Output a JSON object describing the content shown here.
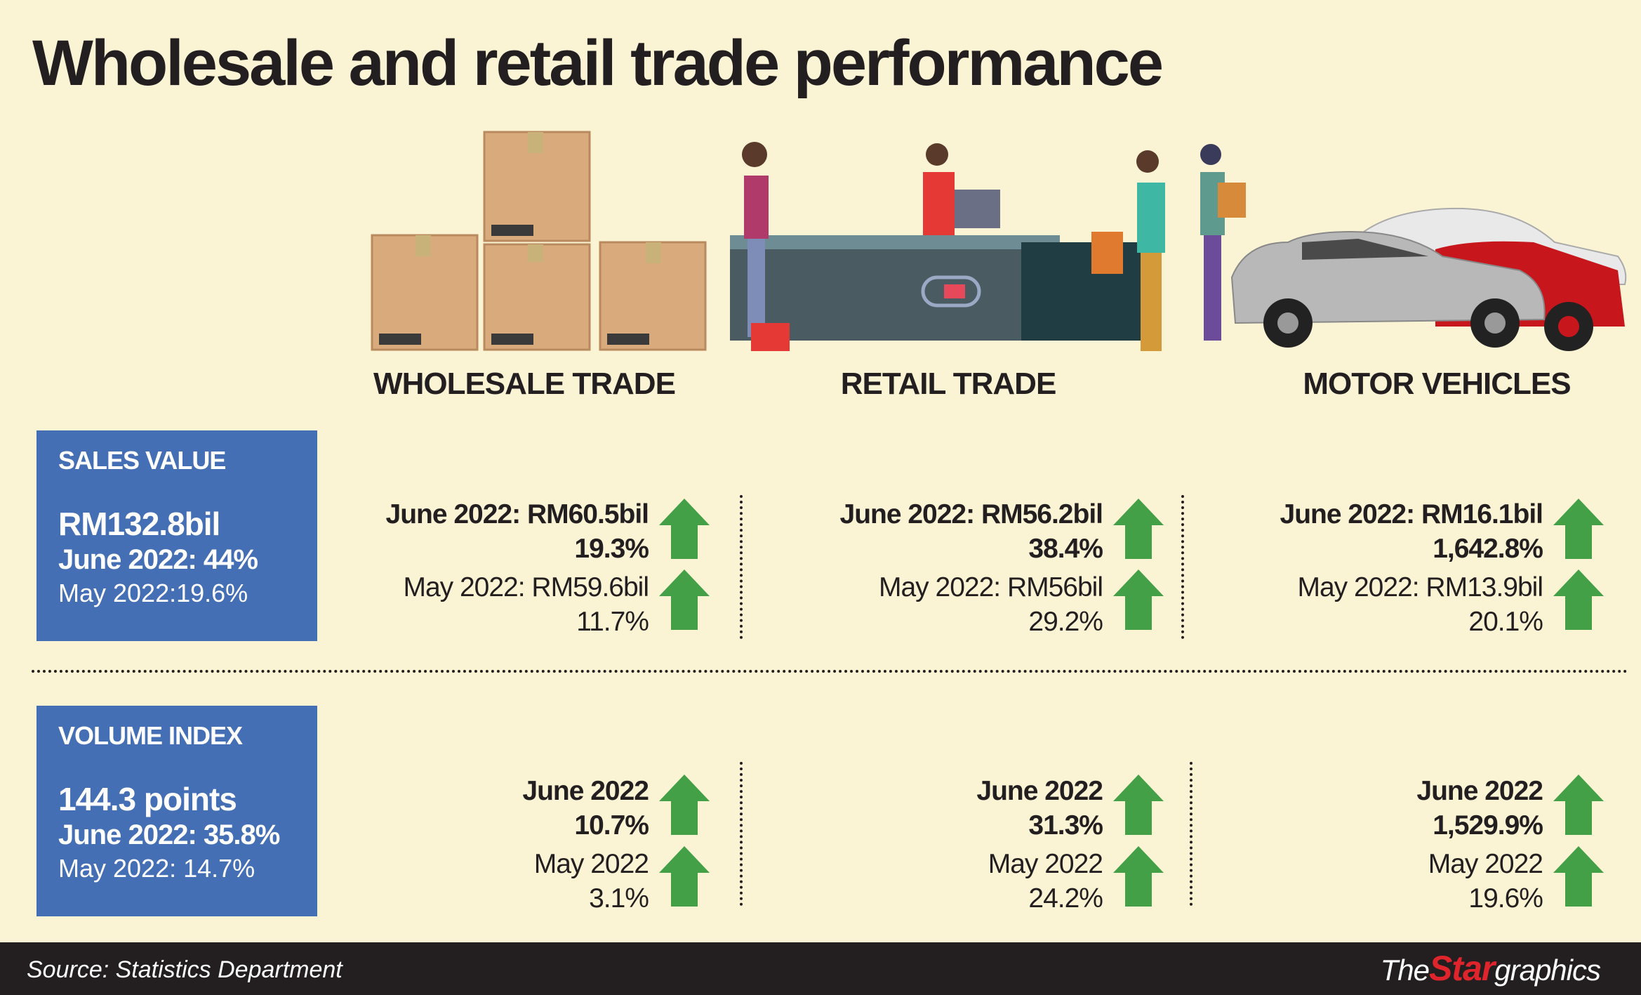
{
  "title": "Wholesale and retail trade performance",
  "categories": [
    "WHOLESALE TRADE",
    "RETAIL TRADE",
    "MOTOR VEHICLES"
  ],
  "sales_value": {
    "label": "SALES VALUE",
    "total": "RM132.8bil",
    "june": "June 2022: 44%",
    "may": "May 2022:19.6%",
    "columns": [
      {
        "june": "June 2022: RM60.5bil",
        "june_pct": "19.3%",
        "may": "May 2022: RM59.6bil",
        "may_pct": "11.7%"
      },
      {
        "june": "June 2022: RM56.2bil",
        "june_pct": "38.4%",
        "may": "May 2022: RM56bil",
        "may_pct": "29.2%"
      },
      {
        "june": "June 2022: RM16.1bil",
        "june_pct": "1,642.8%",
        "may": "May 2022: RM13.9bil",
        "may_pct": "20.1%"
      }
    ]
  },
  "volume_index": {
    "label": "VOLUME INDEX",
    "total": "144.3 points",
    "june": "June 2022: 35.8%",
    "may": "May 2022: 14.7%",
    "columns": [
      {
        "june": "June 2022",
        "june_pct": "10.7%",
        "may": "May 2022",
        "may_pct": "3.1%"
      },
      {
        "june": "June 2022",
        "june_pct": "31.3%",
        "may": "May 2022",
        "may_pct": "24.2%"
      },
      {
        "june": "June 2022",
        "june_pct": "1,529.9%",
        "may": "May 2022",
        "may_pct": "19.6%"
      }
    ]
  },
  "footer": {
    "source": "Source: Statistics Department",
    "logo_the": "The",
    "logo_star": "Star",
    "logo_graphics": "graphics"
  },
  "colors": {
    "background": "#faf4d5",
    "box": "#456fb5",
    "arrow": "#43a047",
    "footer": "#231f20",
    "logo_red": "#e0242b"
  }
}
